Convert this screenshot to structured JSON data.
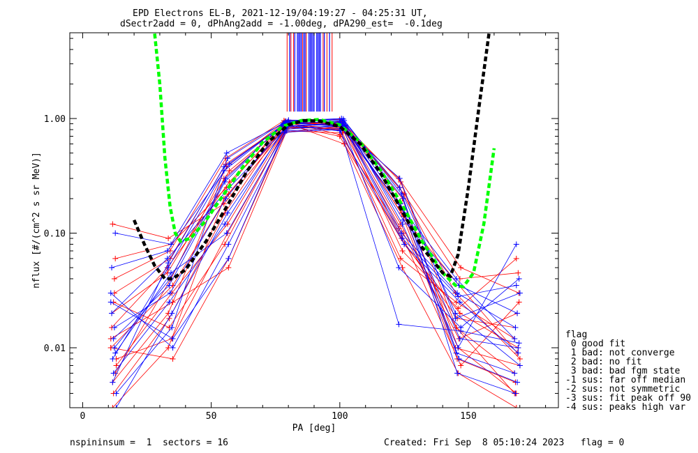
{
  "title_line1": "EPD Electrons EL-B, 2021-12-19/04:19:27 - 04:25:31 UT,",
  "title_line2": "dSectr2add = 0, dPhAng2add = -1.00deg, dPA290_est=  -0.1deg",
  "footer_left": "nspininsum =  1  sectors = 16",
  "footer_right": "Created: Fri Sep  8 05:10:24 2023   flag = 0",
  "legend": {
    "title": "flag",
    "items": [
      " 0 good fit",
      " 1 bad: not converge",
      " 2 bad: no fit",
      " 3 bad: bad fgm state",
      "-1 sus: far off median",
      "-2 sus: not symmetric",
      "-3 sus: fit peak off 90",
      "-4 sus: peaks high var"
    ]
  },
  "colors": {
    "red": "#ff0000",
    "blue": "#0000ff",
    "green": "#00ff00",
    "black": "#000000"
  },
  "chart_data": {
    "type": "line",
    "xlabel": "PA [deg]",
    "ylabel": "nflux [#/(cm^2 s sr MeV)]",
    "xlim": [
      -5,
      185
    ],
    "ylim": [
      0.003,
      5.6
    ],
    "yscale": "log",
    "xticks": [
      0,
      50,
      100,
      150
    ],
    "yticks": [
      0.01,
      0.1,
      1.0
    ],
    "ytick_labels": [
      "0.01",
      "0.10",
      "1.00"
    ],
    "pa_bins": [
      12,
      34,
      56,
      79,
      101,
      124,
      146,
      169
    ],
    "series_profiles": [
      {
        "color": "red",
        "values": [
          0.01,
          0.035,
          0.22,
          0.9,
          0.92,
          0.12,
          0.015,
          0.006
        ]
      },
      {
        "color": "red",
        "values": [
          0.005,
          0.02,
          0.3,
          0.95,
          0.85,
          0.2,
          0.01,
          0.004
        ]
      },
      {
        "color": "red",
        "values": [
          0.03,
          0.06,
          0.4,
          0.88,
          0.7,
          0.08,
          0.02,
          0.01
        ]
      },
      {
        "color": "red",
        "values": [
          0.008,
          0.012,
          0.1,
          0.8,
          0.95,
          0.25,
          0.03,
          0.008
        ]
      },
      {
        "color": "red",
        "values": [
          0.02,
          0.045,
          0.35,
          0.92,
          0.88,
          0.15,
          0.008,
          0.005
        ]
      },
      {
        "color": "red",
        "values": [
          0.004,
          0.018,
          0.15,
          0.85,
          0.8,
          0.1,
          0.012,
          0.02
        ]
      },
      {
        "color": "red",
        "values": [
          0.06,
          0.08,
          0.25,
          0.93,
          0.9,
          0.3,
          0.05,
          0.03
        ]
      },
      {
        "color": "red",
        "values": [
          0.012,
          0.025,
          0.05,
          0.78,
          0.75,
          0.06,
          0.025,
          0.012
        ]
      },
      {
        "color": "red",
        "values": [
          0.003,
          0.01,
          0.2,
          0.9,
          0.6,
          0.05,
          0.006,
          0.003
        ]
      },
      {
        "color": "red",
        "values": [
          0.04,
          0.07,
          0.45,
          0.96,
          0.98,
          0.22,
          0.04,
          0.045
        ]
      },
      {
        "color": "red",
        "values": [
          0.007,
          0.03,
          0.12,
          0.83,
          0.82,
          0.18,
          0.01,
          0.007
        ]
      },
      {
        "color": "red",
        "values": [
          0.015,
          0.05,
          0.28,
          0.91,
          0.78,
          0.09,
          0.018,
          0.015
        ]
      },
      {
        "color": "red",
        "values": [
          0.025,
          0.015,
          0.08,
          0.75,
          0.86,
          0.14,
          0.035,
          0.009
        ]
      },
      {
        "color": "red",
        "values": [
          0.006,
          0.04,
          0.38,
          0.94,
          0.72,
          0.11,
          0.007,
          0.025
        ]
      },
      {
        "color": "red",
        "values": [
          0.01,
          0.008,
          0.06,
          0.82,
          0.93,
          0.28,
          0.015,
          0.004
        ]
      },
      {
        "color": "red",
        "values": [
          0.12,
          0.09,
          0.18,
          0.87,
          0.83,
          0.07,
          0.022,
          0.06
        ]
      },
      {
        "color": "blue",
        "values": [
          0.01,
          0.04,
          0.3,
          0.9,
          0.95,
          0.15,
          0.012,
          0.01
        ]
      },
      {
        "color": "blue",
        "values": [
          0.004,
          0.015,
          0.45,
          0.95,
          1.0,
          0.25,
          0.02,
          0.007
        ]
      },
      {
        "color": "blue",
        "values": [
          0.02,
          0.06,
          0.25,
          0.85,
          0.9,
          0.1,
          0.03,
          0.015
        ]
      },
      {
        "color": "blue",
        "values": [
          0.006,
          0.025,
          0.12,
          0.8,
          0.88,
          0.2,
          0.008,
          0.005
        ]
      },
      {
        "color": "blue",
        "values": [
          0.1,
          0.08,
          0.5,
          0.92,
          0.93,
          0.05,
          0.015,
          0.04
        ]
      },
      {
        "color": "blue",
        "values": [
          0.03,
          0.01,
          0.08,
          0.78,
          0.82,
          0.17,
          0.04,
          0.012
        ]
      },
      {
        "color": "blue",
        "values": [
          0.008,
          0.05,
          0.35,
          0.97,
          0.96,
          0.12,
          0.01,
          0.08
        ]
      },
      {
        "color": "blue",
        "values": [
          0.015,
          0.03,
          0.2,
          0.88,
          0.78,
          0.08,
          0.025,
          0.009
        ]
      },
      {
        "color": "blue",
        "values": [
          0.003,
          0.02,
          0.15,
          0.83,
          0.85,
          0.3,
          0.018,
          0.03
        ]
      },
      {
        "color": "blue",
        "values": [
          0.05,
          0.07,
          0.4,
          0.94,
          0.99,
          0.22,
          0.006,
          0.004
        ]
      },
      {
        "color": "blue",
        "values": [
          0.012,
          0.035,
          0.28,
          0.91,
          0.87,
          0.13,
          0.035,
          0.02
        ]
      },
      {
        "color": "blue",
        "values": [
          0.009,
          0.045,
          0.1,
          0.76,
          0.8,
          0.016,
          0.014,
          0.011
        ]
      },
      {
        "color": "blue",
        "values": [
          0.025,
          0.012,
          0.06,
          0.86,
          0.92,
          0.18,
          0.009,
          0.006
        ]
      },
      {
        "color": "blue",
        "values": [
          0.005,
          0.055,
          0.38,
          0.93,
          0.84,
          0.09,
          0.028,
          0.035
        ]
      }
    ],
    "high_lines_pa_red": [
      79.5,
      81.0,
      82.0,
      85.5,
      87.0,
      93.5,
      95.0,
      97.0
    ],
    "high_lines_pa_blue": [
      80.5,
      82.5,
      83.5,
      84.0,
      84.5,
      85.0,
      86.0,
      86.5,
      88.0,
      88.5,
      89.0,
      89.5,
      90.0,
      91.0,
      91.5,
      92.0,
      92.5,
      94.0,
      96.0
    ],
    "fit_curves": [
      {
        "color": "green",
        "x": [
          28,
          30,
          32,
          34,
          36,
          38,
          42,
          48,
          55,
          62,
          70,
          78,
          85,
          92,
          100,
          108,
          116,
          124,
          132,
          140,
          145,
          148,
          152,
          156,
          160
        ],
        "y": [
          5.5,
          2.0,
          0.45,
          0.17,
          0.1,
          0.085,
          0.09,
          0.13,
          0.22,
          0.37,
          0.62,
          0.86,
          0.96,
          0.98,
          0.88,
          0.62,
          0.35,
          0.18,
          0.085,
          0.045,
          0.035,
          0.034,
          0.045,
          0.12,
          0.55
        ]
      },
      {
        "color": "black",
        "x": [
          20,
          24,
          28,
          32,
          35,
          40,
          48,
          56,
          64,
          72,
          80,
          86,
          92,
          100,
          108,
          116,
          124,
          132,
          140,
          143,
          146,
          150,
          154,
          158
        ],
        "y": [
          0.13,
          0.08,
          0.052,
          0.04,
          0.04,
          0.048,
          0.085,
          0.17,
          0.35,
          0.62,
          0.88,
          0.96,
          0.95,
          0.85,
          0.6,
          0.33,
          0.16,
          0.075,
          0.045,
          0.042,
          0.065,
          0.25,
          1.2,
          5.5
        ]
      }
    ]
  }
}
